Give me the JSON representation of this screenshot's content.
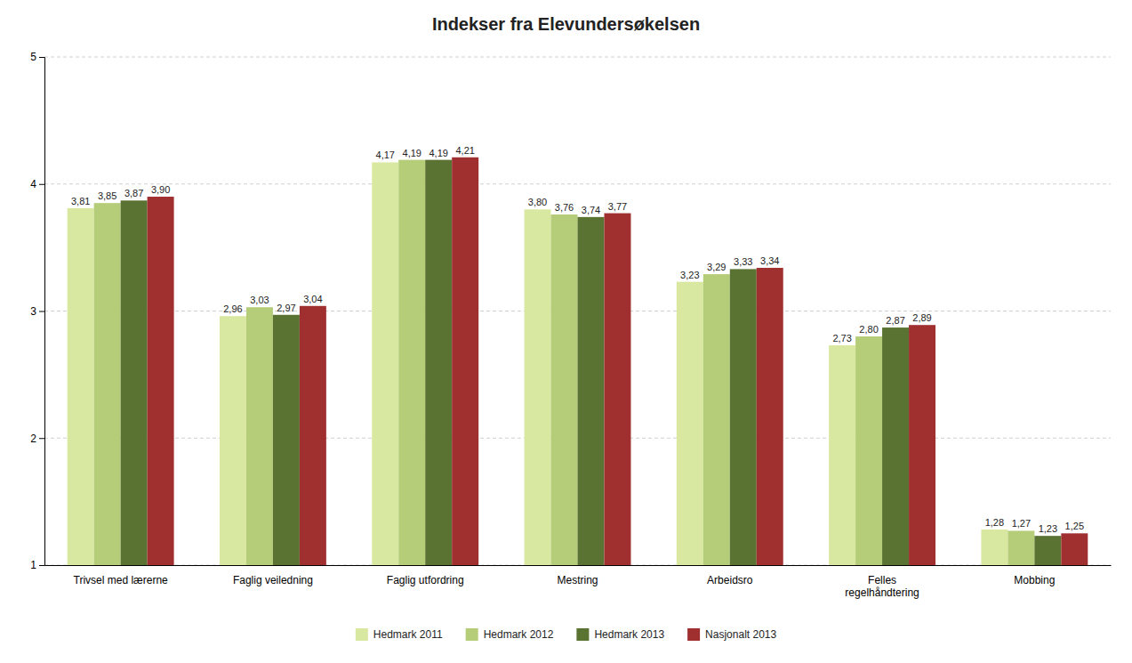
{
  "chart_data": {
    "type": "bar",
    "title": "Indekser fra Elevundersøkelsen",
    "categories": [
      "Trivsel med lærerne",
      "Faglig veiledning",
      "Faglig utfordring",
      "Mestring",
      "Arbeidsro",
      "Felles\nregelhåndtering",
      "Mobbing"
    ],
    "series": [
      {
        "name": "Hedmark 2011",
        "color": "#d9e8a0",
        "values": [
          3.81,
          2.96,
          4.17,
          3.8,
          3.23,
          2.73,
          1.28
        ],
        "value_labels": [
          "3,81",
          "2,96",
          "4,17",
          "3,80",
          "3,23",
          "2,73",
          "1,28"
        ]
      },
      {
        "name": "Hedmark 2012",
        "color": "#b5cc78",
        "values": [
          3.85,
          3.03,
          4.19,
          3.76,
          3.29,
          2.8,
          1.27
        ],
        "value_labels": [
          "3,85",
          "3,03",
          "4,19",
          "3,76",
          "3,29",
          "2,80",
          "1,27"
        ]
      },
      {
        "name": "Hedmark 2013",
        "color": "#5a7232",
        "values": [
          3.87,
          2.97,
          4.19,
          3.74,
          3.33,
          2.87,
          1.23
        ],
        "value_labels": [
          "3,87",
          "2,97",
          "4,19",
          "3,74",
          "3,33",
          "2,87",
          "1,23"
        ]
      },
      {
        "name": "Nasjonalt 2013",
        "color": "#a03030",
        "values": [
          3.9,
          3.04,
          4.21,
          3.77,
          3.34,
          2.89,
          1.25
        ],
        "value_labels": [
          "3,90",
          "3,04",
          "4,21",
          "3,77",
          "3,34",
          "2,89",
          "1,25"
        ]
      }
    ],
    "ylim": [
      1,
      5
    ],
    "yticks": [
      1,
      2,
      3,
      4,
      5
    ],
    "grid": true,
    "legend": "bottom",
    "data_labels": true
  }
}
